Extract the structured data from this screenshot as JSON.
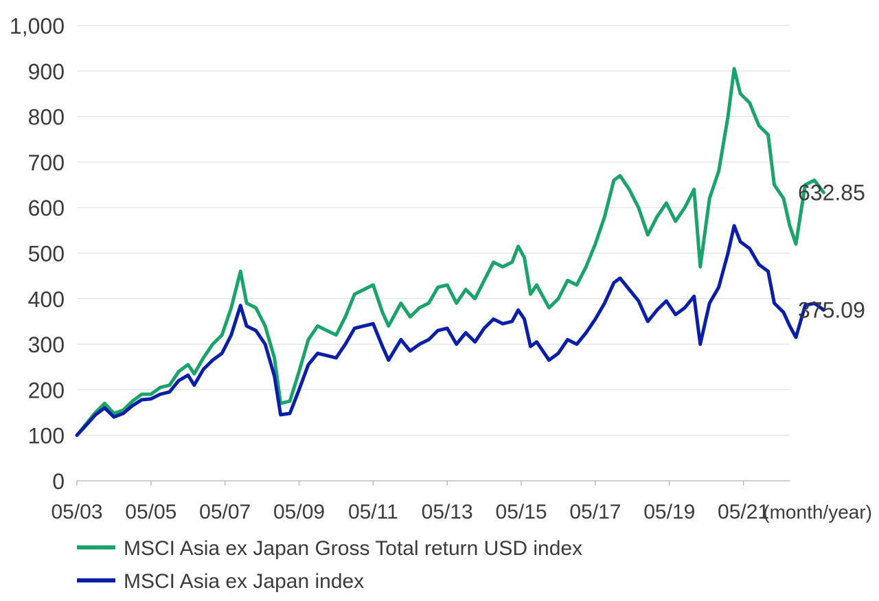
{
  "chart_data": {
    "type": "line",
    "title": "",
    "xlabel": "(month/year)",
    "ylabel": "",
    "ylim": [
      0,
      1000
    ],
    "yticks": [
      0,
      100,
      200,
      300,
      400,
      500,
      600,
      700,
      800,
      900,
      1000
    ],
    "ytick_labels": [
      "0",
      "100",
      "200",
      "300",
      "400",
      "500",
      "600",
      "700",
      "800",
      "900",
      "1,000"
    ],
    "xlim": [
      "2003-05",
      "2022-08"
    ],
    "xticks": [
      "2003-05",
      "2005-05",
      "2007-05",
      "2009-05",
      "2011-05",
      "2013-05",
      "2015-05",
      "2017-05",
      "2019-05",
      "2021-05"
    ],
    "xtick_labels": [
      "05/03",
      "05/05",
      "05/07",
      "05/09",
      "05/11",
      "05/13",
      "05/15",
      "05/17",
      "05/19",
      "05/21"
    ],
    "grid": true,
    "legend_position": "bottom-left",
    "series": [
      {
        "name": "MSCI Asia ex Japan Gross Total return USD index",
        "color": "#1aa36b",
        "end_label": "632.85",
        "points": [
          [
            "2003-05",
            100
          ],
          [
            "2003-08",
            125
          ],
          [
            "2003-11",
            150
          ],
          [
            "2004-02",
            170
          ],
          [
            "2004-05",
            148
          ],
          [
            "2004-08",
            155
          ],
          [
            "2004-11",
            175
          ],
          [
            "2005-02",
            190
          ],
          [
            "2005-05",
            190
          ],
          [
            "2005-08",
            205
          ],
          [
            "2005-11",
            210
          ],
          [
            "2006-02",
            240
          ],
          [
            "2006-05",
            255
          ],
          [
            "2006-07",
            235
          ],
          [
            "2006-10",
            270
          ],
          [
            "2007-01",
            300
          ],
          [
            "2007-04",
            320
          ],
          [
            "2007-07",
            380
          ],
          [
            "2007-10",
            460
          ],
          [
            "2007-12",
            390
          ],
          [
            "2008-03",
            380
          ],
          [
            "2008-06",
            340
          ],
          [
            "2008-09",
            270
          ],
          [
            "2008-11",
            170
          ],
          [
            "2009-02",
            175
          ],
          [
            "2009-05",
            240
          ],
          [
            "2009-08",
            310
          ],
          [
            "2009-11",
            340
          ],
          [
            "2010-02",
            330
          ],
          [
            "2010-05",
            320
          ],
          [
            "2010-08",
            360
          ],
          [
            "2010-11",
            410
          ],
          [
            "2011-02",
            420
          ],
          [
            "2011-05",
            430
          ],
          [
            "2011-08",
            370
          ],
          [
            "2011-10",
            340
          ],
          [
            "2012-02",
            390
          ],
          [
            "2012-05",
            360
          ],
          [
            "2012-08",
            380
          ],
          [
            "2012-11",
            390
          ],
          [
            "2013-02",
            425
          ],
          [
            "2013-05",
            430
          ],
          [
            "2013-08",
            390
          ],
          [
            "2013-11",
            420
          ],
          [
            "2014-02",
            400
          ],
          [
            "2014-05",
            440
          ],
          [
            "2014-08",
            480
          ],
          [
            "2014-11",
            470
          ],
          [
            "2015-02",
            480
          ],
          [
            "2015-04",
            515
          ],
          [
            "2015-06",
            490
          ],
          [
            "2015-08",
            410
          ],
          [
            "2015-10",
            430
          ],
          [
            "2016-02",
            380
          ],
          [
            "2016-05",
            400
          ],
          [
            "2016-08",
            440
          ],
          [
            "2016-11",
            430
          ],
          [
            "2017-02",
            470
          ],
          [
            "2017-05",
            520
          ],
          [
            "2017-08",
            580
          ],
          [
            "2017-11",
            660
          ],
          [
            "2018-01",
            670
          ],
          [
            "2018-04",
            640
          ],
          [
            "2018-07",
            600
          ],
          [
            "2018-10",
            540
          ],
          [
            "2019-01",
            580
          ],
          [
            "2019-04",
            610
          ],
          [
            "2019-07",
            570
          ],
          [
            "2019-10",
            600
          ],
          [
            "2020-01",
            640
          ],
          [
            "2020-03",
            470
          ],
          [
            "2020-06",
            620
          ],
          [
            "2020-09",
            680
          ],
          [
            "2020-12",
            800
          ],
          [
            "2021-02",
            905
          ],
          [
            "2021-04",
            850
          ],
          [
            "2021-07",
            830
          ],
          [
            "2021-10",
            780
          ],
          [
            "2022-01",
            760
          ],
          [
            "2022-03",
            650
          ],
          [
            "2022-06",
            620
          ],
          [
            "2022-08",
            560
          ],
          [
            "2022-10",
            520
          ],
          [
            "2023-01",
            650
          ],
          [
            "2023-04",
            660
          ],
          [
            "2023-07",
            632.85
          ]
        ]
      },
      {
        "name": "MSCI Asia ex Japan index",
        "color": "#0a1ea8",
        "end_label": "375.09",
        "points": [
          [
            "2003-05",
            100
          ],
          [
            "2003-08",
            122
          ],
          [
            "2003-11",
            145
          ],
          [
            "2004-02",
            160
          ],
          [
            "2004-05",
            140
          ],
          [
            "2004-08",
            148
          ],
          [
            "2004-11",
            165
          ],
          [
            "2005-02",
            178
          ],
          [
            "2005-05",
            180
          ],
          [
            "2005-08",
            190
          ],
          [
            "2005-11",
            195
          ],
          [
            "2006-02",
            220
          ],
          [
            "2006-05",
            232
          ],
          [
            "2006-07",
            210
          ],
          [
            "2006-10",
            245
          ],
          [
            "2007-01",
            265
          ],
          [
            "2007-04",
            280
          ],
          [
            "2007-07",
            320
          ],
          [
            "2007-10",
            385
          ],
          [
            "2007-12",
            340
          ],
          [
            "2008-03",
            330
          ],
          [
            "2008-06",
            300
          ],
          [
            "2008-09",
            230
          ],
          [
            "2008-11",
            145
          ],
          [
            "2009-02",
            148
          ],
          [
            "2009-05",
            200
          ],
          [
            "2009-08",
            255
          ],
          [
            "2009-11",
            280
          ],
          [
            "2010-02",
            275
          ],
          [
            "2010-05",
            270
          ],
          [
            "2010-08",
            300
          ],
          [
            "2010-11",
            335
          ],
          [
            "2011-02",
            340
          ],
          [
            "2011-05",
            345
          ],
          [
            "2011-08",
            295
          ],
          [
            "2011-10",
            265
          ],
          [
            "2012-02",
            310
          ],
          [
            "2012-05",
            285
          ],
          [
            "2012-08",
            300
          ],
          [
            "2012-11",
            310
          ],
          [
            "2013-02",
            330
          ],
          [
            "2013-05",
            335
          ],
          [
            "2013-08",
            300
          ],
          [
            "2013-11",
            325
          ],
          [
            "2014-02",
            305
          ],
          [
            "2014-05",
            335
          ],
          [
            "2014-08",
            355
          ],
          [
            "2014-11",
            345
          ],
          [
            "2015-02",
            350
          ],
          [
            "2015-04",
            375
          ],
          [
            "2015-06",
            355
          ],
          [
            "2015-08",
            295
          ],
          [
            "2015-10",
            305
          ],
          [
            "2016-02",
            265
          ],
          [
            "2016-05",
            280
          ],
          [
            "2016-08",
            310
          ],
          [
            "2016-11",
            300
          ],
          [
            "2017-02",
            325
          ],
          [
            "2017-05",
            355
          ],
          [
            "2017-08",
            390
          ],
          [
            "2017-11",
            435
          ],
          [
            "2018-01",
            445
          ],
          [
            "2018-04",
            420
          ],
          [
            "2018-07",
            395
          ],
          [
            "2018-10",
            350
          ],
          [
            "2019-01",
            375
          ],
          [
            "2019-04",
            395
          ],
          [
            "2019-07",
            365
          ],
          [
            "2019-10",
            380
          ],
          [
            "2020-01",
            405
          ],
          [
            "2020-03",
            300
          ],
          [
            "2020-06",
            390
          ],
          [
            "2020-09",
            425
          ],
          [
            "2020-12",
            500
          ],
          [
            "2021-02",
            560
          ],
          [
            "2021-04",
            525
          ],
          [
            "2021-07",
            510
          ],
          [
            "2021-10",
            475
          ],
          [
            "2022-01",
            460
          ],
          [
            "2022-03",
            390
          ],
          [
            "2022-06",
            370
          ],
          [
            "2022-08",
            340
          ],
          [
            "2022-10",
            315
          ],
          [
            "2023-01",
            385
          ],
          [
            "2023-04",
            390
          ],
          [
            "2023-07",
            375.09
          ]
        ]
      }
    ]
  }
}
